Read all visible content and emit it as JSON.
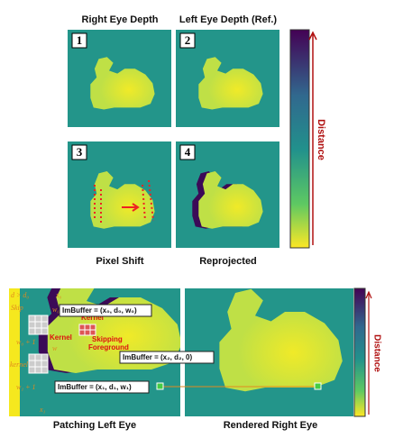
{
  "top": {
    "titles": [
      "Right Eye Depth",
      "Left Eye Depth (Ref.)"
    ],
    "panel_numbers": [
      "1",
      "2",
      "3",
      "4"
    ],
    "captions": [
      "Pixel Shift",
      "Reprojected"
    ],
    "colorbar_label": "Distance"
  },
  "bottom": {
    "labels": [
      "d > d₀",
      "x₀",
      "Skip",
      "w₀",
      "w₀ + 1",
      "w",
      "kernel",
      "w₁ + 1",
      "x₁"
    ],
    "kernels": [
      "Kernel",
      "Kernel"
    ],
    "skipping": [
      "Skipping",
      "Foreground"
    ],
    "buffers": [
      "ImBuffer = (x₀, d₀, w₀)",
      "ImBuffer = (x₂, d₂, 0)",
      "ImBuffer = (x₁, d₁, w₁)"
    ],
    "captions": [
      "Patching Left Eye",
      "Rendered Right Eye"
    ],
    "colorbar_label": "Distance"
  }
}
